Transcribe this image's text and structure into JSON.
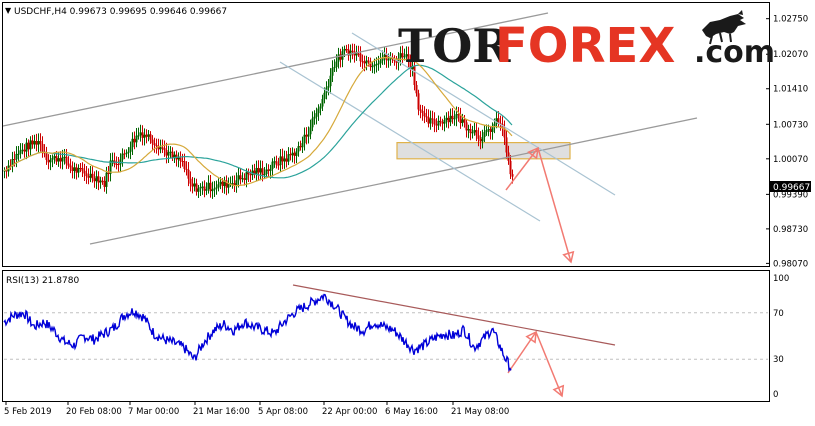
{
  "symbol_header": "USDCHF,H4  0.99673  0.99695  0.99646  0.99667",
  "logo": {
    "part1": "TOR",
    "part2": "FOREX",
    "part3": ".com"
  },
  "colors": {
    "bull_candle": "#006400",
    "bear_candle": "#cc0000",
    "ma_fast": "#d6a93a",
    "ma_slow": "#2ba39b",
    "channel": "#9a9a9a",
    "channel_blue": "#a9c3d2",
    "rsi_line": "#0000d8",
    "rsi_trend": "#a85a5a",
    "forecast_arrow": "#f27a72",
    "zone_fill": "#d9d9d9",
    "zone_stroke": "#e0b24a",
    "logo_dark": "#1a1a1a",
    "logo_red": "#e53523"
  },
  "chart_data": [
    {
      "type": "candlestick",
      "title": "USDCHF,H4",
      "ohlc_header": {
        "open": 0.99673,
        "high": 0.99695,
        "low": 0.99646,
        "close": 0.99667
      },
      "y_ticks": [
        "1.02750",
        "1.02070",
        "1.01410",
        "1.00730",
        "1.00070",
        "0.99390",
        "0.98730",
        "0.98070"
      ],
      "ylim": [
        0.9802,
        1.0305
      ],
      "current_price_label": "0.99667",
      "waypoints": [
        [
          0,
          0.9985
        ],
        [
          10,
          1.001
        ],
        [
          22,
          1.003
        ],
        [
          34,
          1.0042
        ],
        [
          44,
          1.0005
        ],
        [
          56,
          1.001
        ],
        [
          68,
          0.9988
        ],
        [
          80,
          0.9978
        ],
        [
          92,
          0.9972
        ],
        [
          100,
          0.996
        ],
        [
          106,
          1.0
        ],
        [
          116,
          1.0005
        ],
        [
          128,
          1.004
        ],
        [
          136,
          1.0058
        ],
        [
          146,
          1.0048
        ],
        [
          156,
          1.003
        ],
        [
          168,
          1.001
        ],
        [
          178,
          1.0
        ],
        [
          186,
          0.9955
        ],
        [
          196,
          0.995
        ],
        [
          210,
          0.9955
        ],
        [
          224,
          0.996
        ],
        [
          236,
          0.997
        ],
        [
          250,
          0.9982
        ],
        [
          262,
          0.9985
        ],
        [
          272,
          1.0
        ],
        [
          284,
          1.001
        ],
        [
          296,
          1.003
        ],
        [
          306,
          1.007
        ],
        [
          318,
          1.012
        ],
        [
          330,
          1.019
        ],
        [
          342,
          1.0215
        ],
        [
          354,
          1.0205
        ],
        [
          366,
          1.019
        ],
        [
          378,
          1.02
        ],
        [
          390,
          1.0195
        ],
        [
          400,
          1.021
        ],
        [
          408,
          1.018
        ],
        [
          414,
          1.011
        ],
        [
          420,
          1.008
        ],
        [
          430,
          1.0075
        ],
        [
          442,
          1.0085
        ],
        [
          452,
          1.009
        ],
        [
          462,
          1.007
        ],
        [
          470,
          1.006
        ],
        [
          478,
          1.0045
        ],
        [
          486,
          1.0065
        ],
        [
          494,
          1.008
        ],
        [
          500,
          1.005
        ],
        [
          504,
          0.9995
        ],
        [
          508,
          0.9967
        ]
      ],
      "moving_averages": [
        {
          "name": "fast",
          "period": 24
        },
        {
          "name": "slow",
          "period": 50
        }
      ],
      "support_resistance_zone": {
        "from": 1.0007,
        "to": 1.0038
      }
    },
    {
      "type": "line",
      "title": "RSI(13) 21.8780",
      "indicator": "RSI",
      "period": 13,
      "current_value": 21.878,
      "ylim": [
        0,
        100
      ],
      "y_ticks": [
        "100",
        "70",
        "30",
        "0"
      ],
      "levels": [
        70,
        30
      ],
      "waypoints": [
        [
          0,
          62
        ],
        [
          10,
          68
        ],
        [
          20,
          70
        ],
        [
          30,
          58
        ],
        [
          40,
          62
        ],
        [
          50,
          55
        ],
        [
          60,
          45
        ],
        [
          70,
          42
        ],
        [
          80,
          50
        ],
        [
          90,
          47
        ],
        [
          100,
          52
        ],
        [
          110,
          57
        ],
        [
          120,
          68
        ],
        [
          130,
          72
        ],
        [
          140,
          66
        ],
        [
          150,
          52
        ],
        [
          160,
          47
        ],
        [
          170,
          44
        ],
        [
          180,
          40
        ],
        [
          190,
          30
        ],
        [
          200,
          45
        ],
        [
          210,
          55
        ],
        [
          220,
          60
        ],
        [
          230,
          55
        ],
        [
          240,
          62
        ],
        [
          250,
          58
        ],
        [
          260,
          55
        ],
        [
          270,
          52
        ],
        [
          280,
          62
        ],
        [
          290,
          70
        ],
        [
          300,
          75
        ],
        [
          310,
          80
        ],
        [
          320,
          85
        ],
        [
          330,
          77
        ],
        [
          340,
          66
        ],
        [
          350,
          58
        ],
        [
          360,
          55
        ],
        [
          370,
          62
        ],
        [
          380,
          58
        ],
        [
          390,
          55
        ],
        [
          400,
          46
        ],
        [
          410,
          38
        ],
        [
          420,
          42
        ],
        [
          430,
          48
        ],
        [
          440,
          52
        ],
        [
          450,
          50
        ],
        [
          460,
          56
        ],
        [
          470,
          40
        ],
        [
          480,
          48
        ],
        [
          488,
          56
        ],
        [
          494,
          45
        ],
        [
          500,
          33
        ],
        [
          507,
          22
        ]
      ]
    }
  ],
  "x_labels": [
    "5 Feb 2019",
    "20 Feb 08:00",
    "7 Mar 00:00",
    "21 Mar 16:00",
    "5 Apr 08:00",
    "22 Apr 00:00",
    "6 May 16:00",
    "21 May 08:00"
  ],
  "rsi_header": "RSI(13) 21.8780",
  "rsi_ticks": [
    "100",
    "70",
    "30",
    "0"
  ]
}
